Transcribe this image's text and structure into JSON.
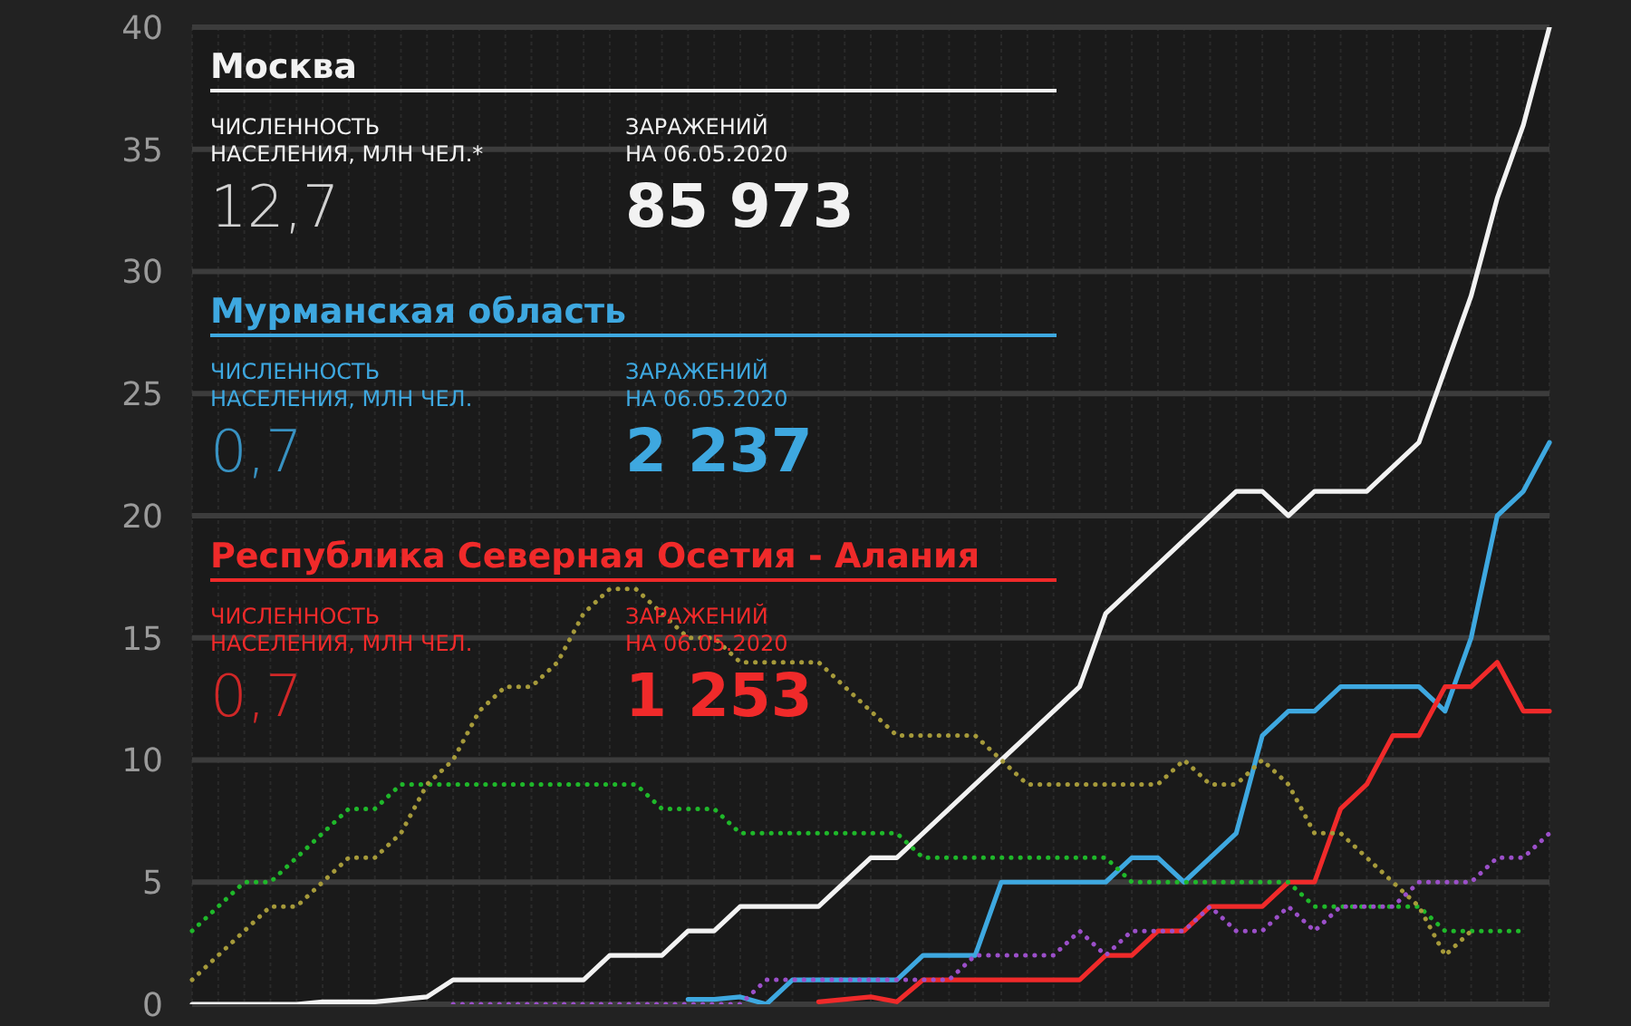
{
  "chart_data": {
    "type": "line",
    "categories": [
      null,
      null,
      null,
      null,
      null,
      null,
      null,
      null,
      null,
      null,
      null,
      null,
      null,
      null,
      null,
      null,
      null,
      null,
      null,
      null,
      null,
      null,
      null,
      null,
      null,
      null,
      null,
      null,
      null,
      null,
      null,
      null,
      null,
      null,
      null,
      null,
      null,
      null,
      null,
      null,
      null,
      null,
      null,
      null,
      null,
      null,
      null,
      null,
      null,
      null,
      null,
      null,
      null
    ],
    "ylim": [
      0,
      40
    ],
    "yticks": [
      0,
      5,
      10,
      15,
      20,
      25,
      30,
      35,
      40
    ],
    "grid": true,
    "tick_labels": "y",
    "legend": false,
    "series": [
      {
        "name": "Москва",
        "color": "#f2f2f2",
        "line_style": "solid",
        "values": [
          0,
          0,
          0,
          0,
          0,
          0.1,
          0.1,
          0.1,
          0.2,
          0.3,
          1,
          1,
          1,
          1,
          1,
          1,
          2,
          2,
          2,
          3,
          3,
          4,
          4,
          4,
          4,
          5,
          6,
          6,
          7,
          8,
          9,
          10,
          11,
          12,
          13,
          16,
          17,
          18,
          19,
          20,
          21,
          21,
          20,
          21,
          21,
          21,
          22,
          23,
          26,
          29,
          33,
          36,
          40
        ]
      },
      {
        "name": "Мурманская область",
        "color": "#3ea8e0",
        "line_style": "solid",
        "values": [
          null,
          null,
          null,
          null,
          null,
          null,
          null,
          null,
          null,
          null,
          null,
          null,
          null,
          null,
          null,
          null,
          null,
          null,
          null,
          0.2,
          0.2,
          0.3,
          0,
          1,
          1,
          1,
          1,
          1,
          2,
          2,
          2,
          5,
          5,
          5,
          5,
          5,
          6,
          6,
          5,
          6,
          7,
          11,
          12,
          12,
          13,
          13,
          13,
          13,
          12,
          15,
          20,
          21,
          23
        ]
      },
      {
        "name": "Республика Северная Осетия - Алания",
        "color": "#f02a2a",
        "line_style": "solid",
        "values": [
          null,
          null,
          null,
          null,
          null,
          null,
          null,
          null,
          null,
          null,
          null,
          null,
          null,
          null,
          null,
          null,
          null,
          null,
          null,
          null,
          null,
          null,
          null,
          null,
          0.1,
          0.2,
          0.3,
          0.1,
          1,
          1,
          1,
          1,
          1,
          1,
          1,
          2,
          2,
          3,
          3,
          4,
          4,
          4,
          5,
          5,
          8,
          9,
          11,
          11,
          13,
          13,
          14,
          12,
          12
        ]
      },
      {
        "color": "#1fb82a",
        "line_style": "dotted",
        "values": [
          3,
          4,
          5,
          5,
          6,
          7,
          8,
          8,
          9,
          9,
          9,
          9,
          9,
          9,
          9,
          9,
          9,
          9,
          8,
          8,
          8,
          7,
          7,
          7,
          7,
          7,
          7,
          7,
          6,
          6,
          6,
          6,
          6,
          6,
          6,
          6,
          5,
          5,
          5,
          5,
          5,
          5,
          5,
          4,
          4,
          4,
          4,
          4,
          3,
          3,
          3,
          3,
          null
        ]
      },
      {
        "color": "#a69a3a",
        "line_style": "dotted",
        "values": [
          1,
          2,
          3,
          4,
          4,
          5,
          6,
          6,
          7,
          9,
          10,
          12,
          13,
          13,
          14,
          16,
          17,
          17,
          16,
          15,
          15,
          14,
          14,
          14,
          14,
          13,
          12,
          11,
          11,
          11,
          11,
          10,
          9,
          9,
          9,
          9,
          9,
          9,
          10,
          9,
          9,
          10,
          9,
          7,
          7,
          6,
          5,
          4,
          2,
          3,
          null,
          null,
          null
        ]
      },
      {
        "color": "#9b4fc9",
        "line_style": "dotted",
        "values": [
          null,
          null,
          null,
          null,
          null,
          null,
          null,
          null,
          null,
          null,
          0,
          0,
          0,
          0,
          0,
          0,
          0,
          0,
          0,
          0,
          0,
          0,
          1,
          1,
          1,
          1,
          1,
          1,
          1,
          1,
          2,
          2,
          2,
          2,
          3,
          2,
          3,
          3,
          3,
          4,
          3,
          3,
          4,
          3,
          4,
          4,
          4,
          5,
          5,
          5,
          6,
          6,
          7
        ]
      }
    ],
    "annotations": [
      "ЧИСЛЕННОСТЬ\nНАСЕЛЕНИЯ, МЛН ЧЕЛ.*",
      "12,7",
      "ЗАРАЖЕНИЙ\nНА 06.05.2020",
      "85 973",
      "ЧИСЛЕННОСТЬ\nНАСЕЛЕНИЯ, МЛН ЧЕЛ.",
      "0,7",
      "ЗАРАЖЕНИЙ\nНА 06.05.2020",
      "2 237",
      "ЧИСЛЕННОСТЬ\nНАСЕЛЕНИЯ, МЛН ЧЕЛ.",
      "0,7",
      "ЗАРАЖЕНИЙ\nНА 06.05.2020",
      "1 253"
    ]
  }
}
